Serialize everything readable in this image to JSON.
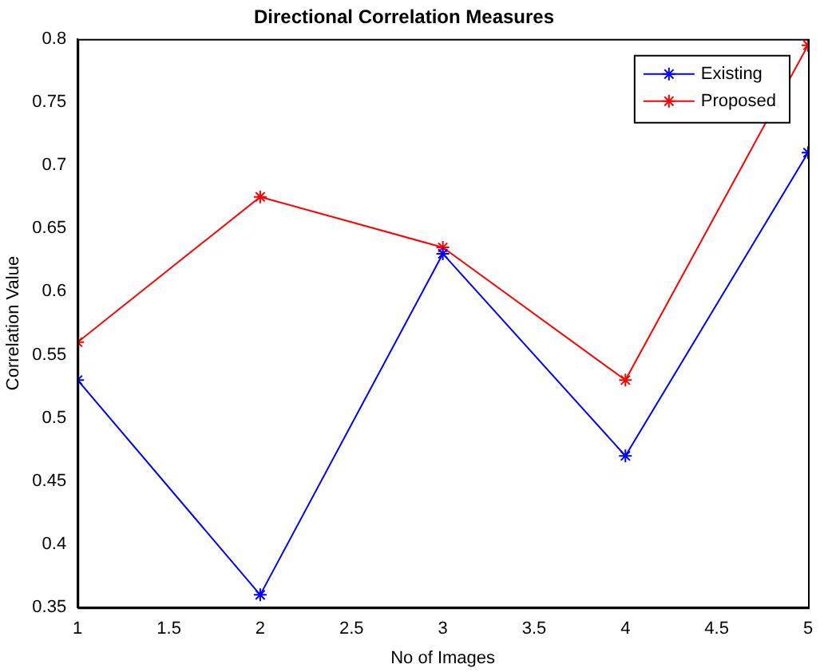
{
  "chart_data": {
    "type": "line",
    "title": "Directional Correlation Measures",
    "xlabel": "No of Images",
    "ylabel": "Correlation Value",
    "x": [
      1,
      2,
      3,
      4,
      5
    ],
    "series": [
      {
        "name": "Existing",
        "color": "#0000ff",
        "values": [
          0.53,
          0.36,
          0.63,
          0.47,
          0.71
        ]
      },
      {
        "name": "Proposed",
        "color": "#ff0000",
        "values": [
          0.56,
          0.675,
          0.635,
          0.53,
          0.795
        ]
      }
    ],
    "xlim": [
      1,
      5
    ],
    "xticks": [
      1,
      1.5,
      2,
      2.5,
      3,
      3.5,
      4,
      4.5,
      5
    ],
    "ylim": [
      0.35,
      0.8
    ],
    "yticks": [
      0.35,
      0.4,
      0.45,
      0.5,
      0.55,
      0.6,
      0.65,
      0.7,
      0.75,
      0.8
    ],
    "grid": false,
    "legend": "top right",
    "marker": "cross",
    "line_style": "solid"
  }
}
